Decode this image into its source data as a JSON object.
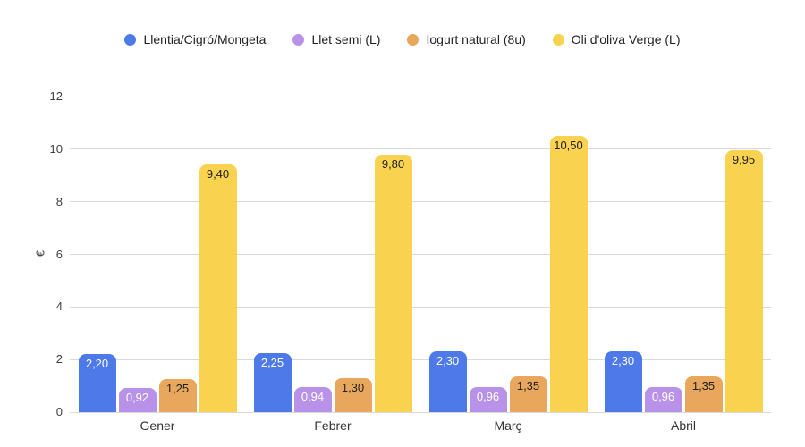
{
  "chart_data": {
    "type": "bar",
    "title": "",
    "categories": [
      "Gener",
      "Febrer",
      "Març",
      "Abril"
    ],
    "series": [
      {
        "name": "Llentia/Cigró/Mongeta",
        "color": "#4d7ae8",
        "label_text_color": "#ffffff",
        "values": [
          2.2,
          2.25,
          2.3,
          2.3
        ],
        "labels": [
          "2,20",
          "2,25",
          "2,30",
          "2,30"
        ]
      },
      {
        "name": "Llet semi (L)",
        "color": "#b892e8",
        "label_text_color": "#ffffff",
        "values": [
          0.92,
          0.94,
          0.96,
          0.96
        ],
        "labels": [
          "0,92",
          "0,94",
          "0,96",
          "0,96"
        ]
      },
      {
        "name": "Iogurt natural (8u)",
        "color": "#e9a75d",
        "label_text_color": "#212121",
        "values": [
          1.25,
          1.3,
          1.35,
          1.35
        ],
        "labels": [
          "1,25",
          "1,30",
          "1,35",
          "1,35"
        ]
      },
      {
        "name": "Oli d'oliva Verge (L)",
        "color": "#f9d34f",
        "label_text_color": "#212121",
        "values": [
          9.4,
          9.8,
          10.5,
          9.95
        ],
        "labels": [
          "9,40",
          "9,80",
          "10,50",
          "9,95"
        ]
      }
    ],
    "xlabel": "",
    "ylabel": "€",
    "yticks": [
      0,
      2,
      4,
      6,
      8,
      10,
      12
    ],
    "ylim": [
      0,
      12
    ],
    "grid": true,
    "legend_position": "top",
    "gridline_color": "#d9d9d9"
  }
}
